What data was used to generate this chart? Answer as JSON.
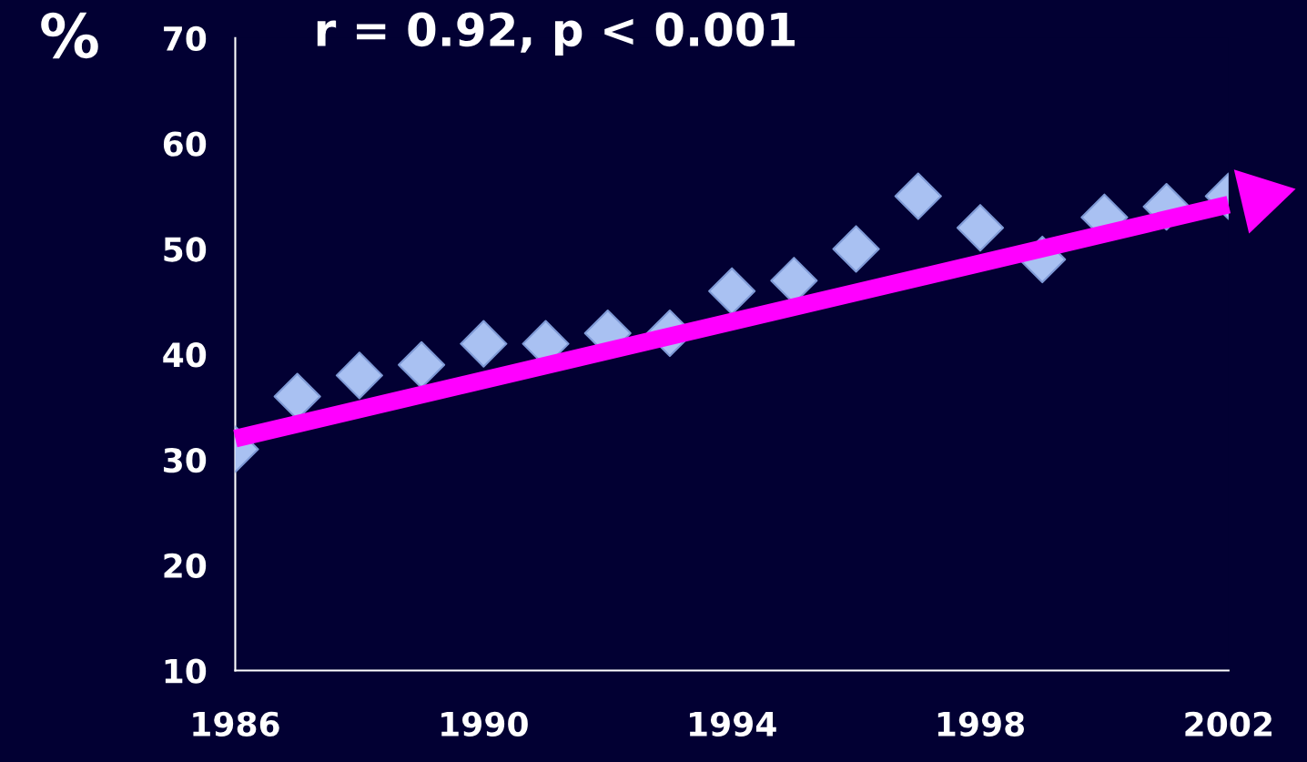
{
  "chart_data": {
    "type": "scatter",
    "ylabel": "%",
    "annotations": [
      "r = 0.92, p < 0.001"
    ],
    "x": [
      1986,
      1987,
      1988,
      1989,
      1990,
      1991,
      1992,
      1993,
      1994,
      1995,
      1996,
      1997,
      1998,
      1999,
      2000,
      2001,
      2002
    ],
    "series": [
      {
        "color": "#a9c1f2",
        "marker": "diamond",
        "values": [
          31,
          36,
          38,
          39,
          41,
          41,
          42,
          42,
          46,
          47,
          50,
          55,
          52,
          49,
          53,
          54,
          55
        ]
      },
      {
        "type": "line",
        "color": "#ff00ff",
        "x": [
          1986,
          2002
        ],
        "values": [
          32,
          54.2
        ]
      }
    ],
    "xlim": [
      1986,
      2002
    ],
    "xticks": [
      1986,
      1990,
      1994,
      1998,
      2002
    ],
    "ylim": [
      10,
      70
    ],
    "yticks": [
      10,
      20,
      30,
      40,
      50,
      60,
      70
    ],
    "grid": false,
    "legend": false
  }
}
